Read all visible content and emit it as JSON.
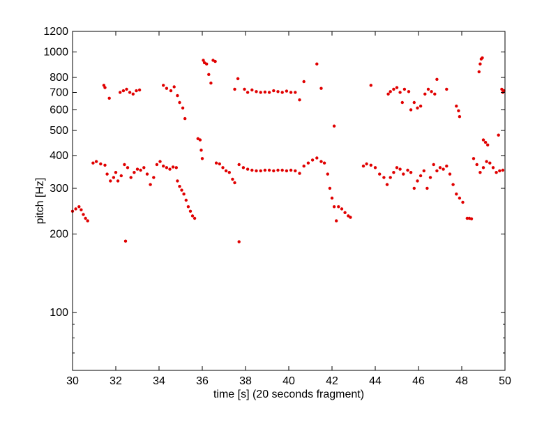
{
  "chart_data": {
    "type": "scatter",
    "title": "",
    "xlabel": "time [s] (20 seconds fragment)",
    "ylabel": "pitch [Hz]",
    "xlim": [
      30,
      50
    ],
    "ylim": [
      60,
      1200
    ],
    "yscale": "log",
    "grid": false,
    "legend": "none",
    "marker_color": "#e00000",
    "xticks": [
      30,
      32,
      34,
      36,
      38,
      40,
      42,
      44,
      46,
      48,
      50
    ],
    "xtick_labels": [
      "30",
      "32",
      "34",
      "36",
      "38",
      "40",
      "42",
      "44",
      "46",
      "48",
      "50"
    ],
    "yticks": [
      100,
      200,
      300,
      400,
      500,
      600,
      700,
      800,
      1000,
      1200
    ],
    "ytick_labels": [
      "100",
      "200",
      "300",
      "400",
      "500",
      "600",
      "700",
      "800",
      "1000",
      "1200"
    ],
    "yminor_ticks": [
      70,
      80,
      90
    ],
    "series": [
      {
        "segments": [
          {
            "t": [
              30.0,
              30.15,
              30.3,
              30.4,
              30.5,
              30.6,
              30.7
            ],
            "f": [
              245,
              250,
              255,
              248,
              238,
              230,
              225
            ]
          },
          {
            "t": [
              30.95,
              31.1,
              31.3,
              31.5,
              31.6,
              31.75,
              31.9,
              32.0,
              32.1,
              32.25,
              32.4,
              32.55,
              32.7,
              32.85,
              33.0,
              33.15,
              33.3,
              33.45,
              33.6,
              33.75,
              33.9,
              34.05,
              34.2,
              34.35,
              34.5,
              34.65,
              34.8
            ],
            "f": [
              375,
              380,
              372,
              368,
              340,
              320,
              330,
              345,
              320,
              335,
              370,
              360,
              330,
              345,
              355,
              352,
              360,
              340,
              310,
              330,
              370,
              380,
              365,
              360,
              355,
              362,
              360
            ]
          },
          {
            "t": [
              34.85,
              34.95,
              35.05,
              35.15,
              35.25,
              35.35,
              35.45,
              35.55,
              35.65
            ],
            "f": [
              320,
              305,
              295,
              285,
              270,
              255,
              245,
              235,
              230
            ]
          },
          {
            "t": [
              36.65,
              36.8,
              36.95,
              37.1,
              37.25,
              37.4,
              37.5
            ],
            "f": [
              375,
              372,
              360,
              350,
              345,
              325,
              315
            ]
          },
          {
            "t": [
              37.7,
              37.9,
              38.1,
              38.3,
              38.5,
              38.7,
              38.9,
              39.1,
              39.3,
              39.5,
              39.7,
              39.9,
              40.1,
              40.3,
              40.5
            ],
            "f": [
              370,
              360,
              355,
              352,
              350,
              350,
              352,
              352,
              350,
              352,
              352,
              350,
              352,
              350,
              342
            ]
          },
          {
            "t": [
              40.7,
              40.9,
              41.1,
              41.3,
              41.5,
              41.65,
              41.8,
              41.9,
              42.0,
              42.1,
              42.2
            ],
            "f": [
              365,
              375,
              385,
              392,
              380,
              375,
              340,
              300,
              275,
              255,
              225
            ]
          },
          {
            "t": [
              42.3,
              42.45,
              42.6,
              42.75,
              42.85
            ],
            "f": [
              255,
              250,
              242,
              235,
              232
            ]
          },
          {
            "t": [
              43.45,
              43.6,
              43.8,
              44.0,
              44.2,
              44.4,
              44.55,
              44.7,
              44.85,
              45.0,
              45.15,
              45.3,
              45.5,
              45.65,
              45.8,
              45.95,
              46.1,
              46.25,
              46.4,
              46.55,
              46.7,
              46.85,
              47.0,
              47.15,
              47.3,
              47.45,
              47.6,
              47.75,
              47.9,
              48.05
            ],
            "f": [
              365,
              372,
              368,
              360,
              340,
              330,
              310,
              330,
              345,
              360,
              355,
              340,
              352,
              345,
              300,
              320,
              335,
              350,
              300,
              330,
              370,
              350,
              360,
              355,
              365,
              340,
              310,
              285,
              275,
              265
            ]
          },
          {
            "t": [
              48.25,
              48.35,
              48.45
            ],
            "f": [
              230,
              230,
              229
            ]
          },
          {
            "t": [
              48.55,
              48.7,
              48.85,
              49.0,
              49.15,
              49.3,
              49.45,
              49.6,
              49.75,
              49.9
            ],
            "f": [
              390,
              370,
              345,
              360,
              380,
              375,
              360,
              345,
              350,
              352
            ]
          },
          {
            "t": [
              31.45,
              31.5,
              31.7,
              32.2,
              32.35,
              32.5,
              32.65,
              32.8,
              32.95,
              33.1,
              34.2,
              34.35,
              34.55,
              34.7,
              34.85,
              34.95,
              35.1,
              35.2
            ],
            "f": [
              745,
              730,
              665,
              700,
              710,
              720,
              700,
              690,
              710,
              715,
              745,
              725,
              710,
              735,
              680,
              640,
              610,
              555
            ]
          },
          {
            "t": [
              35.8,
              35.9,
              35.95,
              36.0,
              36.05,
              36.1,
              36.2,
              36.3,
              36.4,
              36.5,
              36.6
            ],
            "f": [
              465,
              460,
              420,
              390,
              930,
              910,
              900,
              820,
              760,
              930,
              920
            ]
          },
          {
            "t": [
              37.5,
              37.65,
              37.95,
              38.1,
              38.3,
              38.5,
              38.7,
              38.9,
              39.1,
              39.3,
              39.5,
              39.7,
              39.9,
              40.1,
              40.3,
              40.5,
              40.7,
              41.3,
              41.5
            ],
            "f": [
              720,
              790,
              720,
              700,
              715,
              705,
              700,
              702,
              700,
              710,
              705,
              700,
              708,
              700,
              700,
              655,
              770,
              900,
              725
            ]
          },
          {
            "t": [
              43.8,
              44.6,
              44.7,
              44.85,
              45.0,
              45.15,
              45.25,
              45.35,
              45.55,
              45.65,
              45.8,
              45.95,
              46.1,
              46.3,
              46.45,
              46.6,
              46.75,
              46.85,
              47.3,
              47.75,
              47.85,
              47.9
            ],
            "f": [
              745,
              690,
              705,
              720,
              730,
              700,
              640,
              720,
              705,
              600,
              640,
              610,
              620,
              690,
              720,
              705,
              690,
              785,
              720,
              620,
              595,
              565
            ]
          },
          {
            "t": [
              48.8,
              48.85,
              48.9,
              48.95,
              49.0,
              49.1,
              49.2,
              49.7,
              49.85,
              49.9,
              49.95
            ],
            "f": [
              840,
              900,
              940,
              950,
              460,
              450,
              440,
              480,
              720,
              700,
              710
            ]
          },
          {
            "t": [
              32.45,
              37.7,
              42.1
            ],
            "f": [
              188,
              187,
              520
            ]
          }
        ]
      }
    ]
  }
}
